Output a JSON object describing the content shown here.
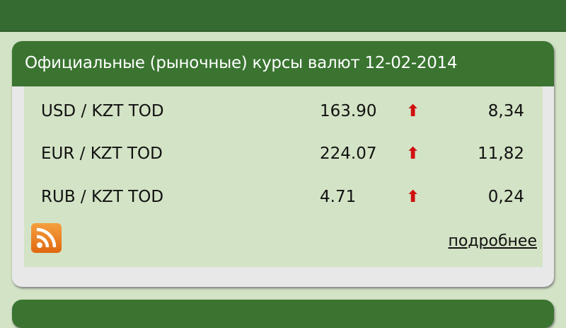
{
  "header": {
    "title": "Официальные (рыночные) курсы валют 12-02-2014"
  },
  "rates": [
    {
      "pair": "USD / KZT TOD",
      "rate": "163.90",
      "trend": "up",
      "change": "8,34"
    },
    {
      "pair": "EUR / KZT TOD",
      "rate": "224.07",
      "trend": "up",
      "change": "11,82"
    },
    {
      "pair": "RUB / KZT TOD",
      "rate": "4.71",
      "trend": "up",
      "change": "0,24"
    }
  ],
  "arrow_glyph": "🡅",
  "more_link": "подробнее",
  "colors": {
    "brand_green": "#3a7430",
    "background": "#d3e3c5",
    "up_arrow": "#d01010",
    "rss": "#f08a24"
  }
}
